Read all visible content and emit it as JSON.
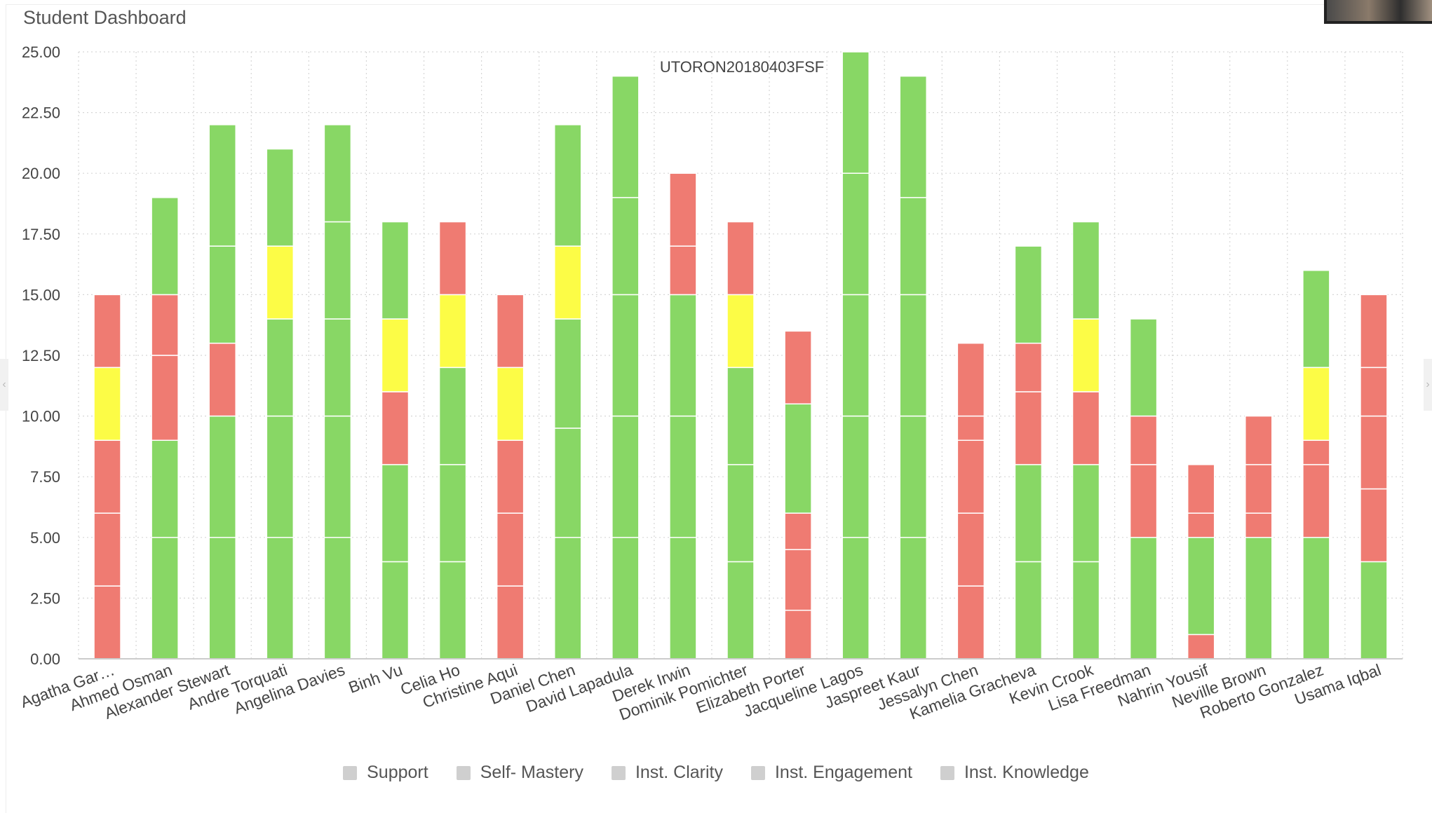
{
  "page": {
    "title": "Student Dashboard"
  },
  "colors": {
    "green": "#88d765",
    "red": "#ef7b72",
    "yellow": "#fcfc46",
    "legend_swatch": "#cfcfcf",
    "grid": "#d6d6d6"
  },
  "legend_items": [
    {
      "label": "Support"
    },
    {
      "label": "Self- Mastery"
    },
    {
      "label": "Inst. Clarity"
    },
    {
      "label": "Inst. Engagement"
    },
    {
      "label": "Inst. Knowledge"
    }
  ],
  "chart_data": {
    "type": "bar",
    "stacked": true,
    "title": "UTORON20180403FSF",
    "xlabel": "",
    "ylabel": "",
    "ylim": [
      0,
      25
    ],
    "y_ticks": [
      "0.00",
      "2.50",
      "5.00",
      "7.50",
      "10.00",
      "12.50",
      "15.00",
      "17.50",
      "20.00",
      "22.50",
      "25.00"
    ],
    "grid": true,
    "legend_position": "bottom",
    "categories": [
      "Agatha Gar…",
      "Ahmed Osman",
      "Alexander Stewart",
      "Andre Torquati",
      "Angelina Davies",
      "Binh Vu",
      "Celia Ho",
      "Christine Aqui",
      "Daniel Chen",
      "David Lapadula",
      "Derek Irwin",
      "Dominik Pomichter",
      "Elizabeth Porter",
      "Jacqueline Lagos",
      "Jaspreet Kaur",
      "Jessalyn Chen",
      "Kamelia Gracheva",
      "Kevin Crook",
      "Lisa Freedman",
      "Nahrin Yousif",
      "Neville Brown",
      "Roberto Gonzalez",
      "Usama Iqbal"
    ],
    "series": [
      {
        "name": "Support",
        "values": [
          3,
          5,
          5,
          5,
          5,
          4,
          4,
          3,
          5,
          5,
          5,
          4,
          2,
          5,
          5,
          3,
          4,
          4,
          5,
          1,
          5,
          5,
          4
        ],
        "colors": [
          "red",
          "green",
          "green",
          "green",
          "green",
          "green",
          "green",
          "red",
          "green",
          "green",
          "green",
          "green",
          "red",
          "green",
          "green",
          "red",
          "green",
          "green",
          "green",
          "red",
          "green",
          "green",
          "green"
        ]
      },
      {
        "name": "Self- Mastery",
        "values": [
          3,
          4,
          5,
          5,
          5,
          4,
          4,
          3,
          4.5,
          5,
          5,
          4,
          2.5,
          5,
          5,
          3,
          4,
          4,
          3,
          4,
          1,
          3,
          3
        ],
        "colors": [
          "red",
          "green",
          "green",
          "green",
          "green",
          "green",
          "green",
          "red",
          "green",
          "green",
          "green",
          "green",
          "red",
          "green",
          "green",
          "red",
          "green",
          "green",
          "red",
          "green",
          "red",
          "red",
          "red"
        ]
      },
      {
        "name": "Inst. Clarity",
        "values": [
          3,
          3.5,
          3,
          4,
          4,
          3,
          4,
          3,
          4.5,
          5,
          5,
          4,
          1.5,
          5,
          5,
          3,
          3,
          3,
          2,
          1,
          2,
          1,
          3
        ],
        "colors": [
          "red",
          "red",
          "red",
          "green",
          "green",
          "red",
          "green",
          "red",
          "green",
          "green",
          "green",
          "green",
          "red",
          "green",
          "green",
          "red",
          "red",
          "red",
          "red",
          "red",
          "red",
          "red",
          "red"
        ]
      },
      {
        "name": "Inst. Engagement",
        "values": [
          3,
          2.5,
          4,
          3,
          4,
          3,
          3,
          3,
          3,
          4,
          2,
          3,
          4.5,
          5,
          4,
          1,
          2,
          3,
          4,
          2,
          2,
          3,
          2
        ],
        "colors": [
          "yellow",
          "red",
          "green",
          "yellow",
          "green",
          "yellow",
          "yellow",
          "yellow",
          "yellow",
          "green",
          "red",
          "yellow",
          "green",
          "green",
          "green",
          "red",
          "red",
          "yellow",
          "green",
          "red",
          "red",
          "yellow",
          "red"
        ]
      },
      {
        "name": "Inst. Knowledge",
        "values": [
          3,
          4,
          5,
          4,
          4,
          4,
          3,
          3,
          5,
          5,
          3,
          3,
          3,
          5,
          5,
          3,
          4,
          4,
          0,
          0,
          0,
          4,
          3
        ],
        "colors": [
          "red",
          "green",
          "green",
          "green",
          "green",
          "green",
          "red",
          "red",
          "green",
          "green",
          "red",
          "red",
          "red",
          "green",
          "green",
          "red",
          "green",
          "green",
          "green",
          "green",
          "green",
          "green",
          "red"
        ]
      }
    ]
  }
}
